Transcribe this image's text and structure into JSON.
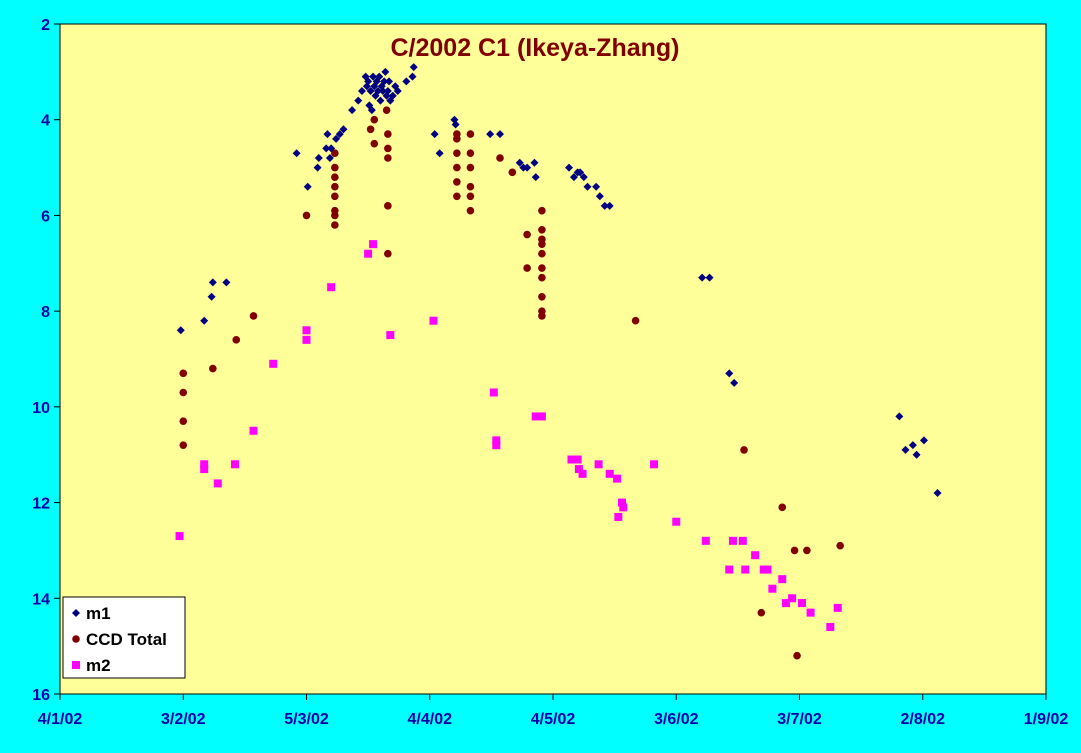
{
  "chart_data": {
    "type": "scatter",
    "title": "C/2002 C1 (Ikeya-Zhang)",
    "xlabel": "",
    "ylabel": "",
    "x_axis": {
      "tick_labels": [
        "4/1/02",
        "3/2/02",
        "5/3/02",
        "4/4/02",
        "4/5/02",
        "3/6/02",
        "3/7/02",
        "2/8/02",
        "1/9/02"
      ],
      "range": [
        0,
        8
      ]
    },
    "y_axis": {
      "tick_labels": [
        "2",
        "4",
        "6",
        "8",
        "10",
        "12",
        "14",
        "16"
      ],
      "ylim": [
        2,
        16
      ],
      "reversed": true
    },
    "grid": false,
    "legend_position": "bottom-left",
    "colors": {
      "page_background": "#00FFFF",
      "plot_background": "#FFFF99",
      "tick_labels": "#0000AA",
      "title": "#800000"
    },
    "series": [
      {
        "name": "m1",
        "marker": "diamond",
        "color": "#000080",
        "points": [
          [
            0.98,
            8.4
          ],
          [
            1.17,
            8.2
          ],
          [
            1.23,
            7.7
          ],
          [
            1.24,
            7.4
          ],
          [
            1.35,
            7.4
          ],
          [
            1.92,
            4.7
          ],
          [
            2.01,
            5.4
          ],
          [
            2.09,
            5.0
          ],
          [
            2.1,
            4.8
          ],
          [
            2.16,
            4.6
          ],
          [
            2.17,
            4.3
          ],
          [
            2.19,
            4.8
          ],
          [
            2.2,
            4.6
          ],
          [
            2.24,
            4.4
          ],
          [
            2.27,
            4.3
          ],
          [
            2.3,
            4.2
          ],
          [
            2.37,
            3.8
          ],
          [
            2.42,
            3.6
          ],
          [
            2.45,
            3.4
          ],
          [
            2.48,
            3.1
          ],
          [
            2.49,
            3.3
          ],
          [
            2.5,
            3.2
          ],
          [
            2.51,
            3.7
          ],
          [
            2.52,
            3.4
          ],
          [
            2.53,
            3.8
          ],
          [
            2.54,
            3.1
          ],
          [
            2.55,
            3.3
          ],
          [
            2.56,
            3.5
          ],
          [
            2.57,
            3.2
          ],
          [
            2.58,
            3.4
          ],
          [
            2.59,
            3.1
          ],
          [
            2.6,
            3.6
          ],
          [
            2.61,
            3.3
          ],
          [
            2.62,
            3.4
          ],
          [
            2.63,
            3.2
          ],
          [
            2.64,
            3.0
          ],
          [
            2.65,
            3.5
          ],
          [
            2.66,
            3.4
          ],
          [
            2.67,
            3.2
          ],
          [
            2.68,
            3.6
          ],
          [
            2.7,
            3.5
          ],
          [
            2.72,
            3.3
          ],
          [
            2.74,
            3.4
          ],
          [
            2.81,
            3.2
          ],
          [
            2.86,
            3.1
          ],
          [
            2.87,
            2.9
          ],
          [
            3.04,
            4.3
          ],
          [
            3.08,
            4.7
          ],
          [
            3.2,
            4.0
          ],
          [
            3.21,
            4.1
          ],
          [
            3.49,
            4.3
          ],
          [
            3.57,
            4.3
          ],
          [
            3.73,
            4.9
          ],
          [
            3.76,
            5.0
          ],
          [
            3.79,
            5.0
          ],
          [
            3.85,
            4.9
          ],
          [
            3.86,
            5.2
          ],
          [
            4.13,
            5.0
          ],
          [
            4.17,
            5.2
          ],
          [
            4.2,
            5.1
          ],
          [
            4.22,
            5.1
          ],
          [
            4.25,
            5.2
          ],
          [
            4.28,
            5.4
          ],
          [
            4.35,
            5.4
          ],
          [
            4.38,
            5.6
          ],
          [
            4.42,
            5.8
          ],
          [
            4.46,
            5.8
          ],
          [
            5.21,
            7.3
          ],
          [
            5.27,
            7.3
          ],
          [
            5.43,
            9.3
          ],
          [
            5.47,
            9.5
          ],
          [
            6.81,
            10.2
          ],
          [
            6.86,
            10.9
          ],
          [
            6.92,
            10.8
          ],
          [
            6.95,
            11.0
          ],
          [
            7.01,
            10.7
          ],
          [
            7.12,
            11.8
          ]
        ]
      },
      {
        "name": "CCD Total",
        "marker": "circle",
        "color": "#800000",
        "points": [
          [
            1.0,
            9.3
          ],
          [
            1.0,
            9.7
          ],
          [
            1.0,
            10.3
          ],
          [
            1.0,
            10.8
          ],
          [
            1.24,
            9.2
          ],
          [
            1.43,
            8.6
          ],
          [
            1.57,
            8.1
          ],
          [
            2.0,
            6.0
          ],
          [
            2.23,
            4.7
          ],
          [
            2.23,
            5.0
          ],
          [
            2.23,
            5.2
          ],
          [
            2.23,
            5.4
          ],
          [
            2.23,
            5.6
          ],
          [
            2.23,
            5.9
          ],
          [
            2.23,
            6.0
          ],
          [
            2.23,
            6.2
          ],
          [
            2.52,
            4.2
          ],
          [
            2.55,
            4.0
          ],
          [
            2.55,
            4.5
          ],
          [
            2.65,
            3.8
          ],
          [
            2.66,
            4.3
          ],
          [
            2.66,
            4.6
          ],
          [
            2.66,
            4.8
          ],
          [
            2.66,
            5.8
          ],
          [
            2.66,
            6.8
          ],
          [
            3.22,
            4.3
          ],
          [
            3.22,
            4.4
          ],
          [
            3.22,
            4.7
          ],
          [
            3.22,
            5.0
          ],
          [
            3.22,
            5.3
          ],
          [
            3.22,
            5.6
          ],
          [
            3.33,
            4.3
          ],
          [
            3.33,
            4.7
          ],
          [
            3.33,
            5.0
          ],
          [
            3.33,
            5.4
          ],
          [
            3.33,
            5.6
          ],
          [
            3.33,
            5.9
          ],
          [
            3.57,
            4.8
          ],
          [
            3.67,
            5.1
          ],
          [
            3.79,
            6.4
          ],
          [
            3.79,
            7.1
          ],
          [
            3.91,
            5.9
          ],
          [
            3.91,
            6.3
          ],
          [
            3.91,
            6.5
          ],
          [
            3.91,
            6.6
          ],
          [
            3.91,
            6.8
          ],
          [
            3.91,
            7.1
          ],
          [
            3.91,
            7.3
          ],
          [
            3.91,
            7.7
          ],
          [
            3.91,
            8.0
          ],
          [
            3.91,
            8.1
          ],
          [
            4.67,
            8.2
          ],
          [
            5.55,
            10.9
          ],
          [
            5.69,
            14.3
          ],
          [
            5.86,
            12.1
          ],
          [
            5.96,
            13.0
          ],
          [
            5.98,
            15.2
          ],
          [
            6.06,
            13.0
          ],
          [
            6.33,
            12.9
          ]
        ]
      },
      {
        "name": "m2",
        "marker": "square",
        "color": "#FF00FF",
        "points": [
          [
            0.97,
            12.7
          ],
          [
            1.17,
            11.2
          ],
          [
            1.17,
            11.3
          ],
          [
            1.28,
            11.6
          ],
          [
            1.42,
            11.2
          ],
          [
            1.57,
            10.5
          ],
          [
            1.73,
            9.1
          ],
          [
            2.0,
            8.4
          ],
          [
            2.0,
            8.6
          ],
          [
            2.2,
            7.5
          ],
          [
            2.5,
            6.8
          ],
          [
            2.54,
            6.6
          ],
          [
            2.68,
            8.5
          ],
          [
            3.03,
            8.2
          ],
          [
            3.52,
            9.7
          ],
          [
            3.54,
            10.7
          ],
          [
            3.54,
            10.8
          ],
          [
            3.86,
            10.2
          ],
          [
            3.91,
            10.2
          ],
          [
            4.15,
            11.1
          ],
          [
            4.2,
            11.1
          ],
          [
            4.21,
            11.3
          ],
          [
            4.24,
            11.4
          ],
          [
            4.37,
            11.2
          ],
          [
            4.46,
            11.4
          ],
          [
            4.52,
            11.5
          ],
          [
            4.53,
            12.3
          ],
          [
            4.56,
            12.0
          ],
          [
            4.57,
            12.1
          ],
          [
            4.82,
            11.2
          ],
          [
            5.0,
            12.4
          ],
          [
            5.24,
            12.8
          ],
          [
            5.43,
            13.4
          ],
          [
            5.46,
            12.8
          ],
          [
            5.54,
            12.8
          ],
          [
            5.56,
            13.4
          ],
          [
            5.64,
            13.1
          ],
          [
            5.71,
            13.4
          ],
          [
            5.74,
            13.4
          ],
          [
            5.78,
            13.8
          ],
          [
            5.86,
            13.6
          ],
          [
            5.89,
            14.1
          ],
          [
            5.94,
            14.0
          ],
          [
            6.02,
            14.1
          ],
          [
            6.09,
            14.3
          ],
          [
            6.25,
            14.6
          ],
          [
            6.31,
            14.2
          ]
        ]
      }
    ]
  }
}
